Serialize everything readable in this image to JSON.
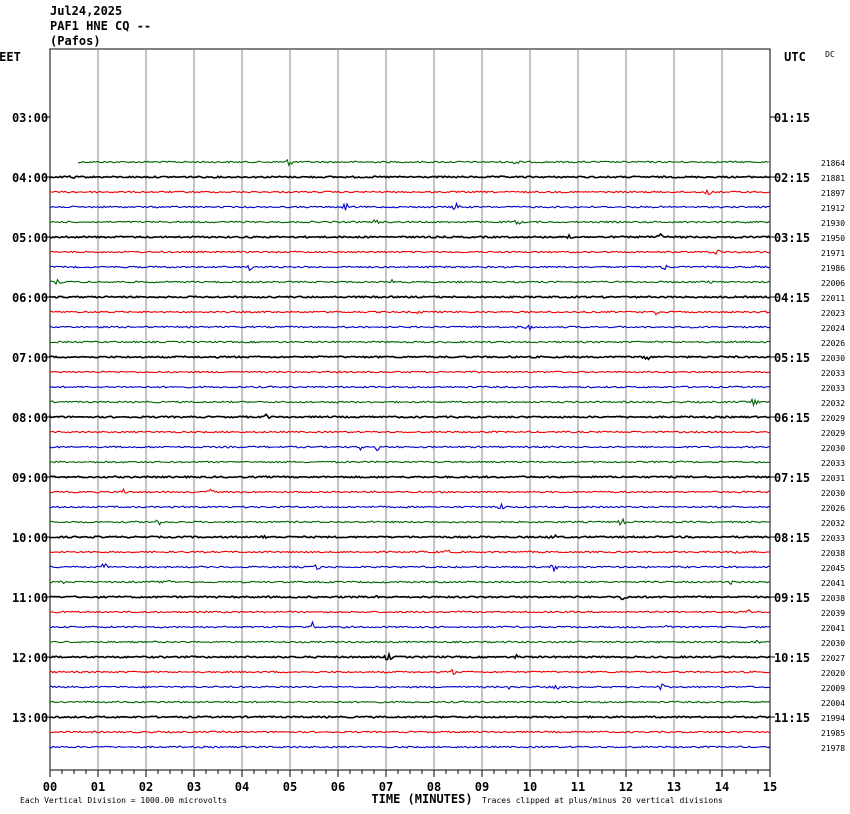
{
  "header": {
    "date": "Jul24,2025",
    "station": "PAF1 HNE CQ --",
    "location": "(Pafos)"
  },
  "chart_data": {
    "type": "line",
    "title": "",
    "left_timezone": "EET",
    "right_timezone": "UTC",
    "corner_label": "DC",
    "xlabel": "TIME (MINUTES)",
    "xlim": [
      0,
      15
    ],
    "x_tick_labels": [
      "00",
      "01",
      "02",
      "03",
      "04",
      "05",
      "06",
      "07",
      "08",
      "09",
      "10",
      "11",
      "12",
      "13",
      "14",
      "15"
    ],
    "left_hour_labels": [
      "03:00",
      "04:00",
      "05:00",
      "06:00",
      "07:00",
      "08:00",
      "09:00",
      "10:00",
      "11:00",
      "12:00",
      "13:00"
    ],
    "right_hour_labels": [
      "01:15",
      "02:15",
      "03:15",
      "04:15",
      "05:15",
      "06:15",
      "07:15",
      "08:15",
      "09:15",
      "10:15",
      "11:15"
    ],
    "trace_colors": [
      "#000000",
      "#ee0000",
      "#0000cc",
      "#006600"
    ],
    "first_trace_slot": 3,
    "first_trace_start_minute": 0.6,
    "trace_dc_values": [
      "21864",
      "21881",
      "21897",
      "21912",
      "21930",
      "21950",
      "21971",
      "21986",
      "22006",
      "22011",
      "22023",
      "22024",
      "22026",
      "22030",
      "22033",
      "22033",
      "22032",
      "22029",
      "22029",
      "22030",
      "22033",
      "22031",
      "22030",
      "22026",
      "22032",
      "22033",
      "22038",
      "22045",
      "22041",
      "22038",
      "22039",
      "22041",
      "22030",
      "22027",
      "22020",
      "22009",
      "22004",
      "21994",
      "21985",
      "21978"
    ],
    "footer_left": "Each Vertical Division = 1000.00 microvolts",
    "footer_right": "Traces clipped at plus/minus 20 vertical divisions"
  }
}
